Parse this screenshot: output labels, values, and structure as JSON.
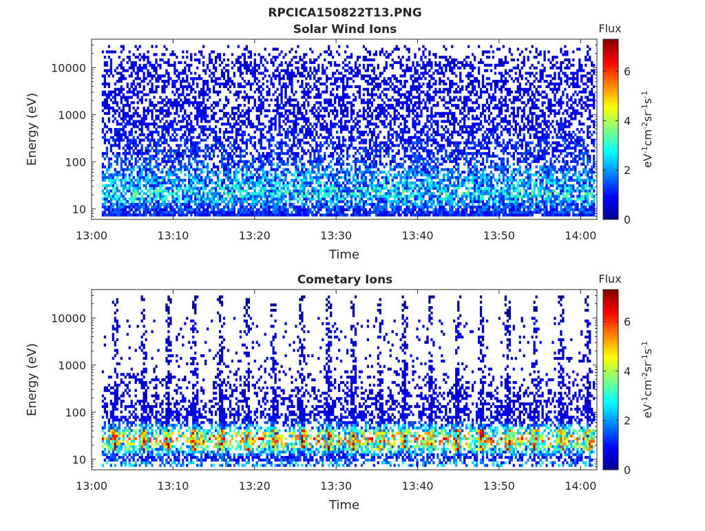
{
  "figure": {
    "title": "RPCICA150822T13.PNG"
  },
  "colormap": [
    "#00008f",
    "#0000ff",
    "#0080ff",
    "#00ffff",
    "#80ff80",
    "#ffff00",
    "#ff8000",
    "#ff0000",
    "#800000"
  ],
  "chart_data": [
    {
      "type": "heatmap",
      "title": "Solar Wind Ions",
      "xlabel": "Time",
      "ylabel": "Energy (eV)",
      "x_scale": "time",
      "x_range": [
        "13:00",
        "14:02"
      ],
      "xticks": [
        "13:00",
        "13:10",
        "13:20",
        "13:30",
        "13:40",
        "13:50",
        "14:00"
      ],
      "y_scale": "log",
      "y_range": [
        6,
        40000
      ],
      "yticks": [
        10,
        100,
        1000,
        10000
      ],
      "ytick_labels": [
        "10",
        "100",
        "1000",
        "10000"
      ],
      "colorbar": {
        "title": "Flux",
        "label": "eV-1 cm-2 sr-1 s-1",
        "range": [
          0,
          7.3
        ],
        "ticks": [
          0,
          2,
          4,
          6
        ]
      },
      "data_start": "13:01:15",
      "data_end": "14:01:45",
      "energy_profile": [
        {
          "energy": 7,
          "mean_flux": 1.2,
          "occupancy": 0.9
        },
        {
          "energy": 10,
          "mean_flux": 1.5,
          "occupancy": 0.8
        },
        {
          "energy": 20,
          "mean_flux": 2.8,
          "occupancy": 0.75
        },
        {
          "energy": 30,
          "mean_flux": 2.3,
          "occupancy": 0.75
        },
        {
          "energy": 60,
          "mean_flux": 1.8,
          "occupancy": 0.6
        },
        {
          "energy": 100,
          "mean_flux": 1.3,
          "occupancy": 0.55
        },
        {
          "energy": 1000,
          "mean_flux": 0.8,
          "occupancy": 0.5
        },
        {
          "energy": 10000,
          "mean_flux": 0.8,
          "occupancy": 0.45
        },
        {
          "energy": 15000,
          "mean_flux": 0.7,
          "occupancy": 0.3
        },
        {
          "energy": 30000,
          "mean_flux": 0.6,
          "occupancy": 0.06
        }
      ]
    },
    {
      "type": "heatmap",
      "title": "Cometary Ions",
      "xlabel": "Time",
      "ylabel": "Energy (eV)",
      "x_scale": "time",
      "x_range": [
        "13:00",
        "14:02"
      ],
      "xticks": [
        "13:00",
        "13:10",
        "13:20",
        "13:30",
        "13:40",
        "13:50",
        "14:00"
      ],
      "y_scale": "log",
      "y_range": [
        6,
        40000
      ],
      "yticks": [
        10,
        100,
        1000,
        10000
      ],
      "ytick_labels": [
        "10",
        "100",
        "1000",
        "10000"
      ],
      "colorbar": {
        "title": "Flux",
        "label": "eV-1 cm-2 sr-1 s-1",
        "range": [
          0,
          7.3
        ],
        "ticks": [
          0,
          2,
          4,
          6
        ]
      },
      "data_start": "13:01:15",
      "data_end": "14:01:45",
      "burst_period_minutes": 3.1,
      "burst_times": [
        "13:02:45",
        "13:06:15",
        "13:09:15",
        "13:12:30",
        "13:15:45",
        "13:19:00",
        "13:22:15",
        "13:25:45",
        "13:29:00",
        "13:32:00",
        "13:35:15",
        "13:38:15",
        "13:41:30",
        "13:44:45",
        "13:47:45",
        "13:51:00",
        "13:54:15",
        "13:57:30",
        "14:00:45"
      ],
      "burst_peak_flux": 6.2,
      "burst_energy_range": [
        15,
        40
      ],
      "energy_profile": [
        {
          "energy": 8,
          "mean_flux": 2.0,
          "occupancy": 0.4
        },
        {
          "energy": 10,
          "mean_flux": 1.0,
          "occupancy": 0.7
        },
        {
          "energy": 25,
          "mean_flux": 5.0,
          "occupancy": 0.5
        },
        {
          "energy": 60,
          "mean_flux": 1.0,
          "occupancy": 0.5
        },
        {
          "energy": 100,
          "mean_flux": 0.7,
          "occupancy": 0.45
        },
        {
          "energy": 1000,
          "mean_flux": 0.6,
          "occupancy": 0.06
        },
        {
          "energy": 10000,
          "mean_flux": 0.6,
          "occupancy": 0.06
        }
      ]
    }
  ]
}
